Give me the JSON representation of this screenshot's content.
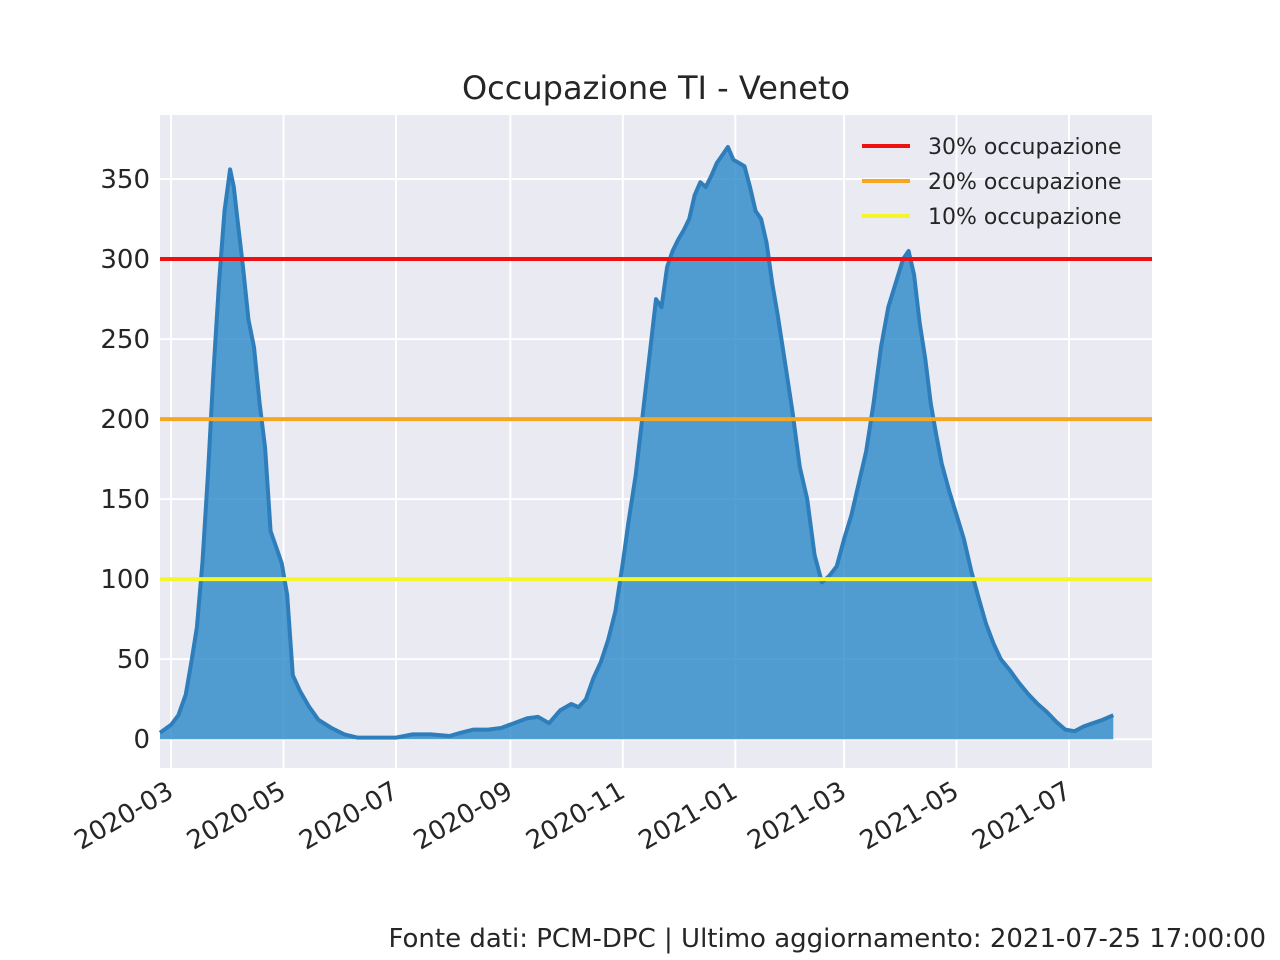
{
  "chart_data": {
    "type": "area",
    "title": "Occupazione TI - Veneto",
    "xlabel": "",
    "ylabel": "",
    "x_range": [
      "2020-02-24",
      "2021-08-15"
    ],
    "ylim": [
      -18,
      390
    ],
    "y_ticks": [
      0,
      50,
      100,
      150,
      200,
      250,
      300,
      350
    ],
    "x_ticks": [
      "2020-03",
      "2020-05",
      "2020-07",
      "2020-09",
      "2020-11",
      "2021-01",
      "2021-03",
      "2021-05",
      "2021-07"
    ],
    "grid": true,
    "legend_position": "top-right",
    "series": [
      {
        "values": [
          [
            "2020-02-24",
            4
          ],
          [
            "2020-03-01",
            9
          ],
          [
            "2020-03-05",
            15
          ],
          [
            "2020-03-09",
            28
          ],
          [
            "2020-03-12",
            48
          ],
          [
            "2020-03-15",
            70
          ],
          [
            "2020-03-18",
            110
          ],
          [
            "2020-03-21",
            165
          ],
          [
            "2020-03-24",
            230
          ],
          [
            "2020-03-27",
            285
          ],
          [
            "2020-03-30",
            330
          ],
          [
            "2020-04-02",
            356
          ],
          [
            "2020-04-04",
            345
          ],
          [
            "2020-04-06",
            325
          ],
          [
            "2020-04-09",
            295
          ],
          [
            "2020-04-12",
            262
          ],
          [
            "2020-04-15",
            245
          ],
          [
            "2020-04-18",
            210
          ],
          [
            "2020-04-21",
            182
          ],
          [
            "2020-04-24",
            130
          ],
          [
            "2020-04-27",
            120
          ],
          [
            "2020-04-30",
            110
          ],
          [
            "2020-05-03",
            90
          ],
          [
            "2020-05-06",
            40
          ],
          [
            "2020-05-10",
            30
          ],
          [
            "2020-05-15",
            20
          ],
          [
            "2020-05-20",
            12
          ],
          [
            "2020-05-27",
            7
          ],
          [
            "2020-06-03",
            3
          ],
          [
            "2020-06-10",
            1
          ],
          [
            "2020-06-20",
            1
          ],
          [
            "2020-07-01",
            1
          ],
          [
            "2020-07-10",
            3
          ],
          [
            "2020-07-20",
            3
          ],
          [
            "2020-07-30",
            2
          ],
          [
            "2020-08-05",
            4
          ],
          [
            "2020-08-12",
            6
          ],
          [
            "2020-08-20",
            6
          ],
          [
            "2020-08-27",
            7
          ],
          [
            "2020-09-03",
            10
          ],
          [
            "2020-09-10",
            13
          ],
          [
            "2020-09-16",
            14
          ],
          [
            "2020-09-22",
            10
          ],
          [
            "2020-09-28",
            18
          ],
          [
            "2020-10-04",
            22
          ],
          [
            "2020-10-08",
            20
          ],
          [
            "2020-10-12",
            25
          ],
          [
            "2020-10-16",
            38
          ],
          [
            "2020-10-20",
            48
          ],
          [
            "2020-10-24",
            62
          ],
          [
            "2020-10-28",
            80
          ],
          [
            "2020-11-01",
            110
          ],
          [
            "2020-11-04",
            135
          ],
          [
            "2020-11-08",
            165
          ],
          [
            "2020-11-12",
            205
          ],
          [
            "2020-11-16",
            245
          ],
          [
            "2020-11-19",
            275
          ],
          [
            "2020-11-22",
            270
          ],
          [
            "2020-11-25",
            295
          ],
          [
            "2020-11-28",
            305
          ],
          [
            "2020-12-01",
            312
          ],
          [
            "2020-12-04",
            318
          ],
          [
            "2020-12-07",
            325
          ],
          [
            "2020-12-10",
            340
          ],
          [
            "2020-12-13",
            348
          ],
          [
            "2020-12-16",
            345
          ],
          [
            "2020-12-19",
            352
          ],
          [
            "2020-12-22",
            360
          ],
          [
            "2020-12-25",
            365
          ],
          [
            "2020-12-28",
            370
          ],
          [
            "2020-12-31",
            362
          ],
          [
            "2021-01-03",
            360
          ],
          [
            "2021-01-06",
            358
          ],
          [
            "2021-01-09",
            345
          ],
          [
            "2021-01-12",
            330
          ],
          [
            "2021-01-15",
            325
          ],
          [
            "2021-01-18",
            310
          ],
          [
            "2021-01-21",
            285
          ],
          [
            "2021-01-24",
            265
          ],
          [
            "2021-01-28",
            235
          ],
          [
            "2021-02-01",
            205
          ],
          [
            "2021-02-05",
            170
          ],
          [
            "2021-02-09",
            150
          ],
          [
            "2021-02-13",
            115
          ],
          [
            "2021-02-17",
            98
          ],
          [
            "2021-02-21",
            102
          ],
          [
            "2021-02-25",
            108
          ],
          [
            "2021-03-01",
            125
          ],
          [
            "2021-03-05",
            140
          ],
          [
            "2021-03-09",
            160
          ],
          [
            "2021-03-13",
            180
          ],
          [
            "2021-03-17",
            210
          ],
          [
            "2021-03-21",
            245
          ],
          [
            "2021-03-25",
            270
          ],
          [
            "2021-03-29",
            285
          ],
          [
            "2021-04-02",
            300
          ],
          [
            "2021-04-05",
            305
          ],
          [
            "2021-04-08",
            290
          ],
          [
            "2021-04-11",
            260
          ],
          [
            "2021-04-14",
            238
          ],
          [
            "2021-04-17",
            210
          ],
          [
            "2021-04-20",
            190
          ],
          [
            "2021-04-23",
            172
          ],
          [
            "2021-04-27",
            155
          ],
          [
            "2021-05-01",
            140
          ],
          [
            "2021-05-05",
            125
          ],
          [
            "2021-05-09",
            105
          ],
          [
            "2021-05-13",
            88
          ],
          [
            "2021-05-17",
            72
          ],
          [
            "2021-05-21",
            60
          ],
          [
            "2021-05-25",
            50
          ],
          [
            "2021-05-30",
            43
          ],
          [
            "2021-06-04",
            35
          ],
          [
            "2021-06-09",
            28
          ],
          [
            "2021-06-14",
            22
          ],
          [
            "2021-06-19",
            17
          ],
          [
            "2021-06-24",
            11
          ],
          [
            "2021-06-29",
            6
          ],
          [
            "2021-07-04",
            5
          ],
          [
            "2021-07-09",
            8
          ],
          [
            "2021-07-14",
            10
          ],
          [
            "2021-07-19",
            12
          ],
          [
            "2021-07-25",
            15
          ]
        ],
        "color": "#2e7ebc",
        "fill_color": "#2e8bc9"
      }
    ],
    "reference_lines": [
      {
        "label": "30% occupazione",
        "y": 300,
        "color": "#ee1111"
      },
      {
        "label": "20% occupazione",
        "y": 200,
        "color": "#f5a623"
      },
      {
        "label": "10% occupazione",
        "y": 100,
        "color": "#f5f52a"
      }
    ]
  },
  "footer": {
    "source": "Fonte dati: PCM-DPC | Ultimo aggiornamento: 2021-07-25 17:00:00"
  },
  "colors": {
    "plot_background": "#eaeaf2",
    "grid": "#ffffff",
    "text": "#262626"
  }
}
